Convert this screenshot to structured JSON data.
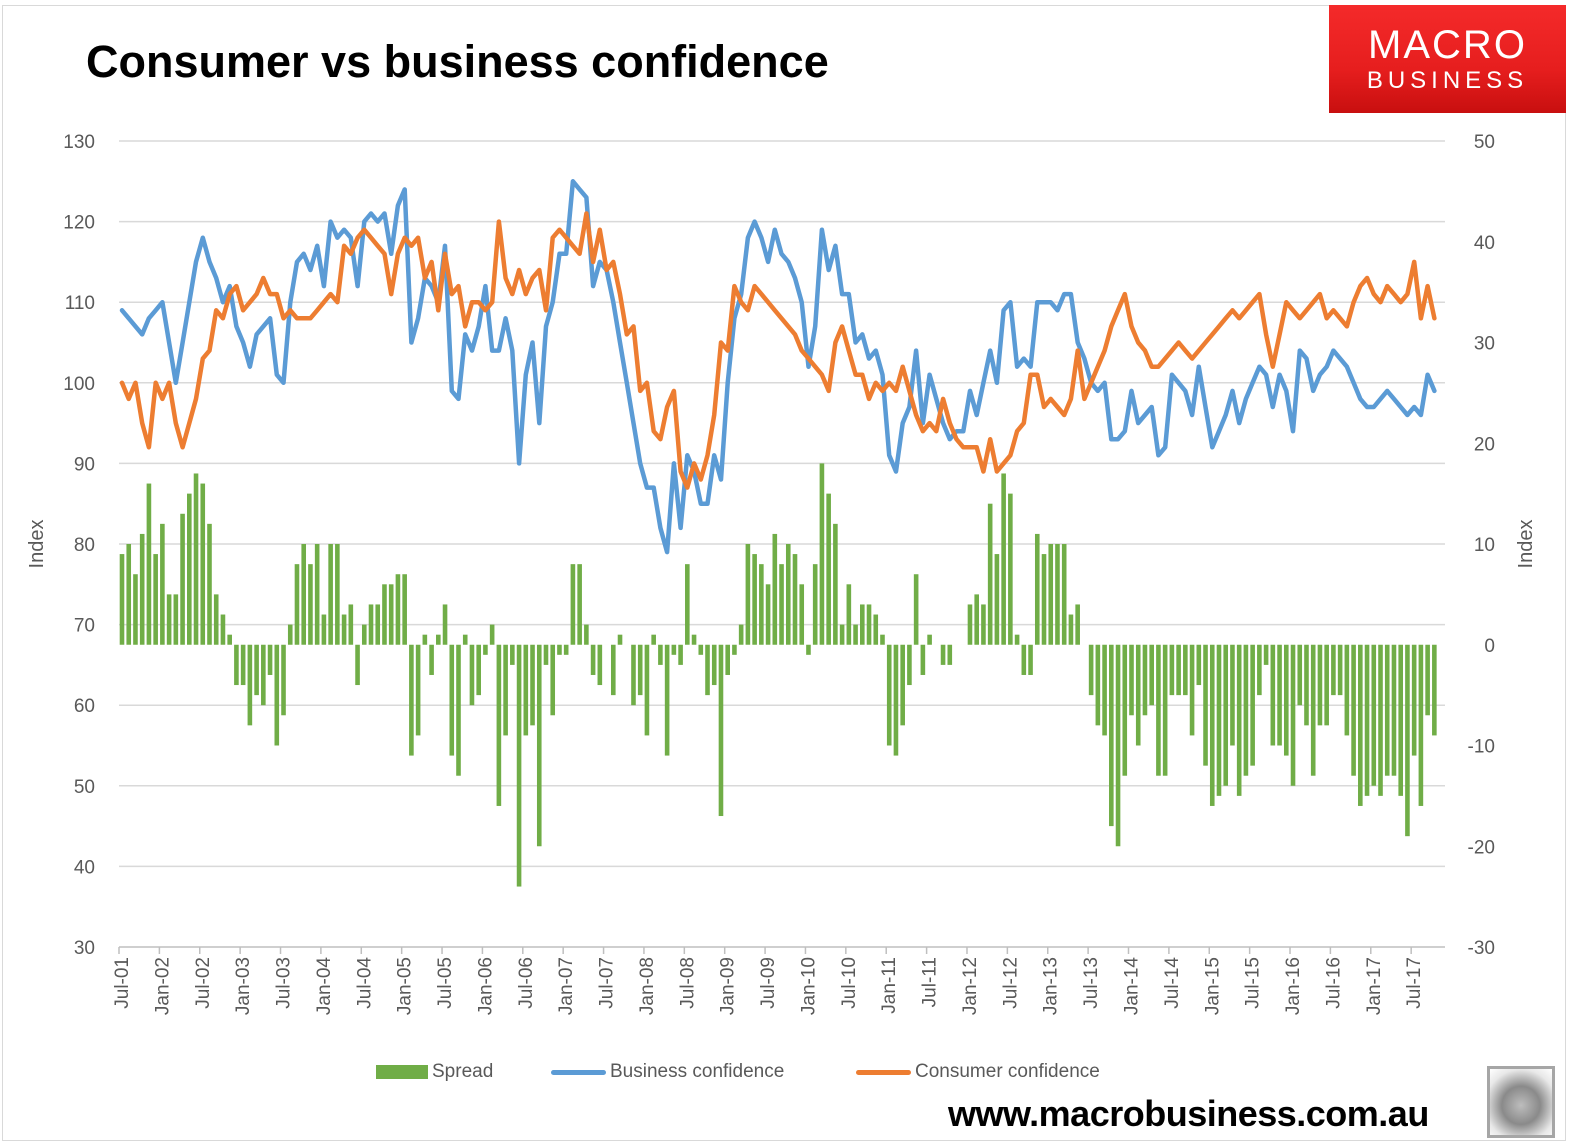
{
  "header": {
    "title": "Consumer vs business confidence"
  },
  "logo": {
    "line1": "MACRO",
    "line2": "BUSINESS"
  },
  "footer": {
    "url": "www.macrobusiness.com.au"
  },
  "colors": {
    "spread": "#70ad47",
    "business": "#5b9bd5",
    "consumer": "#ed7d31",
    "grid": "#d9d9d9",
    "text": "#595959",
    "logo_red": "#e61e1e"
  },
  "chart_data": {
    "type": "bar+line",
    "title": "Consumer vs business confidence",
    "ylabel": "Index",
    "y2label": "Index",
    "ylim": [
      30,
      130
    ],
    "y2lim": [
      -30,
      50
    ],
    "yticks": [
      "30",
      "40",
      "50",
      "60",
      "70",
      "80",
      "90",
      "100",
      "110",
      "120",
      "130"
    ],
    "y2ticks": [
      "-30",
      "-20",
      "-10",
      "0",
      "10",
      "20",
      "30",
      "40",
      "50"
    ],
    "grid": true,
    "legend_position": "bottom",
    "start": "Jul-01",
    "frequency": "monthly",
    "xticks": [
      "Jul-01",
      "Jan-02",
      "Jul-02",
      "Jan-03",
      "Jul-03",
      "Jan-04",
      "Jul-04",
      "Jan-05",
      "Jul-05",
      "Jan-06",
      "Jul-06",
      "Jan-07",
      "Jul-07",
      "Jan-08",
      "Jul-08",
      "Jan-09",
      "Jul-09",
      "Jan-10",
      "Jul-10",
      "Jan-11",
      "Jul-11",
      "Jan-12",
      "Jul-12",
      "Jan-13",
      "Jul-13",
      "Jan-14",
      "Jul-14",
      "Jan-15",
      "Jul-15",
      "Jan-16",
      "Jul-16",
      "Jan-17",
      "Jul-17"
    ],
    "series": [
      {
        "name": "Spread",
        "type": "bar",
        "axis": "right",
        "values": [
          9,
          10,
          7,
          11,
          16,
          9,
          12,
          5,
          5,
          13,
          15,
          17,
          16,
          12,
          5,
          3,
          1,
          -4,
          -4,
          -8,
          -5,
          -6,
          -3,
          -10,
          -7,
          2,
          8,
          10,
          8,
          10,
          3,
          10,
          10,
          3,
          4,
          -4,
          2,
          4,
          4,
          6,
          6,
          7,
          7,
          -11,
          -9,
          1,
          -3,
          1,
          4,
          -11,
          -13,
          1,
          -6,
          -5,
          -1,
          2,
          -16,
          -9,
          -2,
          -24,
          -9,
          -8,
          -20,
          -2,
          -7,
          -1,
          -1,
          8,
          8,
          2,
          -3,
          -4,
          0,
          -5,
          1,
          0,
          -6,
          -5,
          -9,
          1,
          -2,
          -11,
          -1,
          -2,
          8,
          1,
          -1,
          -5,
          -4,
          -17,
          -3,
          -1,
          2,
          10,
          9,
          8,
          6,
          11,
          8,
          10,
          9,
          6,
          -1,
          8,
          18,
          15,
          12,
          2,
          6,
          2,
          4,
          4,
          3,
          1,
          -10,
          -11,
          -8,
          -4,
          7,
          -3,
          1,
          0,
          -2,
          -2,
          0,
          0,
          4,
          5,
          4,
          14,
          9,
          17,
          15,
          1,
          -3,
          -3,
          11,
          9,
          10,
          10,
          10,
          3,
          4,
          0,
          -5,
          -8,
          -9,
          -18,
          -20,
          -13,
          -7,
          -10,
          -7,
          -6,
          -13,
          -13,
          -5,
          -5,
          -5,
          -9,
          -4,
          -12,
          -16,
          -15,
          -14,
          -10,
          -15,
          -13,
          -12,
          -5,
          -2,
          -10,
          -10,
          -11,
          -14,
          -6,
          -8,
          -13,
          -8,
          -8,
          -5,
          -5,
          -9,
          -13,
          -16,
          -15,
          -14,
          -15,
          -13,
          -13,
          -15,
          -19,
          -11,
          -16,
          -7,
          -9
        ]
      },
      {
        "name": "Business confidence",
        "type": "line",
        "axis": "left",
        "values": [
          109,
          108,
          107,
          106,
          108,
          109,
          110,
          105,
          100,
          105,
          110,
          115,
          118,
          115,
          113,
          110,
          112,
          107,
          105,
          102,
          106,
          107,
          108,
          101,
          100,
          110,
          115,
          116,
          114,
          117,
          112,
          120,
          118,
          119,
          118,
          112,
          120,
          121,
          120,
          121,
          116,
          122,
          124,
          105,
          108,
          113,
          112,
          110,
          117,
          99,
          98,
          106,
          104,
          107,
          112,
          104,
          104,
          108,
          104,
          90,
          101,
          105,
          95,
          107,
          110,
          116,
          116,
          125,
          124,
          123,
          112,
          115,
          114,
          110,
          105,
          100,
          95,
          90,
          87,
          87,
          82,
          79,
          90,
          82,
          91,
          89,
          85,
          85,
          91,
          88,
          100,
          108,
          111,
          118,
          120,
          118,
          115,
          119,
          116,
          115,
          113,
          110,
          102,
          107,
          119,
          114,
          117,
          111,
          111,
          105,
          106,
          103,
          104,
          101,
          91,
          89,
          95,
          97,
          104,
          95,
          101,
          98,
          95,
          93,
          94,
          94,
          99,
          96,
          100,
          104,
          100,
          109,
          110,
          102,
          103,
          102,
          110,
          110,
          110,
          109,
          111,
          111,
          105,
          103,
          100,
          99,
          100,
          93,
          93,
          94,
          99,
          95,
          96,
          97,
          91,
          92,
          101,
          100,
          99,
          96,
          102,
          97,
          92,
          94,
          96,
          99,
          95,
          98,
          100,
          102,
          101,
          97,
          101,
          99,
          94,
          104,
          103,
          99,
          101,
          102,
          104,
          103,
          102,
          100,
          98,
          97,
          97,
          98,
          99,
          98,
          97,
          96,
          97,
          96,
          101,
          99
        ]
      },
      {
        "name": "Consumer confidence",
        "type": "line",
        "axis": "left",
        "values": [
          100,
          98,
          100,
          95,
          92,
          100,
          98,
          100,
          95,
          92,
          95,
          98,
          103,
          104,
          109,
          108,
          111,
          112,
          109,
          110,
          111,
          113,
          111,
          111,
          108,
          109,
          108,
          108,
          108,
          109,
          110,
          111,
          110,
          117,
          116,
          118,
          119,
          118,
          117,
          116,
          111,
          116,
          118,
          117,
          118,
          113,
          115,
          109,
          116,
          111,
          112,
          107,
          110,
          110,
          109,
          110,
          120,
          113,
          111,
          114,
          111,
          113,
          114,
          109,
          118,
          119,
          118,
          117,
          116,
          121,
          115,
          119,
          114,
          115,
          111,
          106,
          107,
          99,
          100,
          94,
          93,
          97,
          99,
          89,
          87,
          90,
          88,
          91,
          96,
          105,
          104,
          112,
          110,
          109,
          112,
          111,
          110,
          109,
          108,
          107,
          106,
          104,
          103,
          102,
          101,
          99,
          105,
          107,
          104,
          101,
          101,
          98,
          100,
          99,
          100,
          99,
          102,
          99,
          96,
          94,
          95,
          94,
          98,
          95,
          93,
          92,
          92,
          92,
          89,
          93,
          89,
          90,
          91,
          94,
          95,
          101,
          101,
          97,
          98,
          97,
          96,
          98,
          104,
          98,
          100,
          102,
          104,
          107,
          109,
          111,
          107,
          105,
          104,
          102,
          102,
          103,
          104,
          105,
          104,
          103,
          104,
          105,
          106,
          107,
          108,
          109,
          108,
          109,
          110,
          111,
          106,
          102,
          106,
          110,
          109,
          108,
          109,
          110,
          111,
          108,
          109,
          108,
          107,
          110,
          112,
          113,
          111,
          110,
          112,
          111,
          110,
          111,
          115,
          108,
          112,
          108
        ]
      }
    ]
  }
}
